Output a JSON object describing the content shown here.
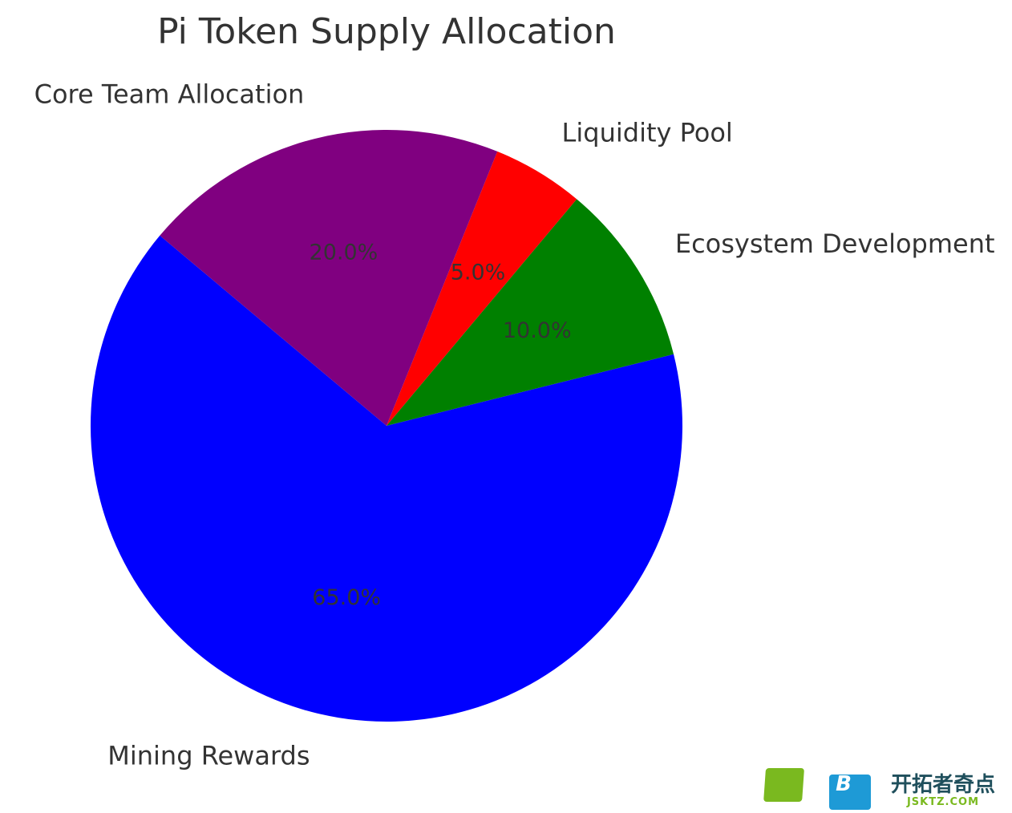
{
  "chart_data": {
    "type": "pie",
    "title": "Pi Token Supply Allocation",
    "slices": [
      {
        "label": "Mining Rewards",
        "value": 65.0,
        "pct_label": "65.0%",
        "color": "#0000ff"
      },
      {
        "label": "Ecosystem Development",
        "value": 10.0,
        "pct_label": "10.0%",
        "color": "#008000"
      },
      {
        "label": "Liquidity Pool",
        "value": 5.0,
        "pct_label": "5.0%",
        "color": "#ff0000"
      },
      {
        "label": "Core Team Allocation",
        "value": 20.0,
        "pct_label": "20.0%",
        "color": "#800080"
      }
    ],
    "start_angle_deg": 140,
    "direction": "counterclockwise"
  },
  "watermark": {
    "logo_letter": "B",
    "name": "开拓者奇点",
    "url": "JSKTZ.COM"
  }
}
